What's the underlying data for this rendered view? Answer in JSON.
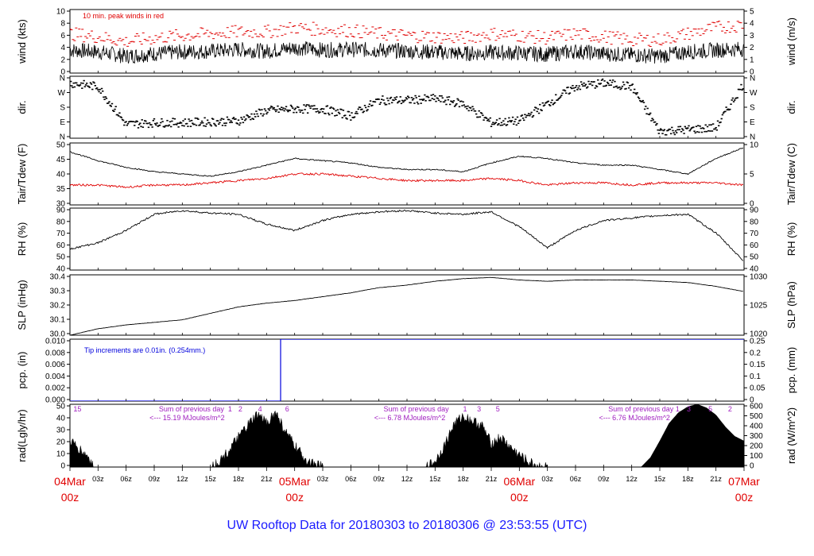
{
  "title": "UW Rooftop Data for 20180303  to  20180306 @ 23:53:55  (UTC)",
  "colors": {
    "black": "#000000",
    "red": "#e00000",
    "blue": "#0000dd",
    "purple": "#a020c0",
    "title": "#1a1aff"
  },
  "x_axis": {
    "hour_labels": [
      "03z",
      "06z",
      "09z",
      "12z",
      "15z",
      "18z",
      "21z"
    ],
    "dates": [
      {
        "top": "04Mar",
        "bottom": "00z",
        "hour": 0
      },
      {
        "top": "05Mar",
        "bottom": "00z",
        "hour": 24
      },
      {
        "top": "06Mar",
        "bottom": "00z",
        "hour": 48
      },
      {
        "top": "07Mar",
        "bottom": "00z",
        "hour": 72
      }
    ]
  },
  "chart_data": [
    {
      "name": "wind",
      "type": "line",
      "ylabel": "wind (kts)",
      "ylabel_right": "wind (m/s)",
      "ylim": [
        0,
        10.5
      ],
      "yticks": [
        "0",
        "2",
        "4",
        "6",
        "8",
        "10"
      ],
      "yticks_right": [
        "0",
        "1",
        "2",
        "3",
        "4",
        "5"
      ],
      "annotation": "10 min. peak winds in red",
      "x": [
        0,
        3,
        6,
        9,
        12,
        15,
        18,
        21,
        24,
        27,
        30,
        33,
        36,
        39,
        42,
        45,
        48,
        51,
        54,
        57,
        60,
        63,
        66,
        69,
        72
      ],
      "series": [
        {
          "values": [
            3.8,
            3.5,
            2.8,
            3.2,
            3.5,
            3.6,
            3.9,
            3.6,
            4.2,
            3.8,
            3.9,
            3.8,
            3.6,
            3.5,
            3.2,
            3.4,
            3.3,
            3.1,
            3.6,
            3.2,
            3.0,
            2.8,
            3.5,
            3.8,
            4.0
          ]
        },
        {
          "values": [
            6.5,
            6.0,
            5.2,
            5.8,
            6.2,
            6.5,
            6.8,
            6.8,
            7.5,
            7.2,
            7.0,
            6.5,
            6.2,
            6.0,
            5.8,
            6.5,
            6.2,
            5.8,
            6.5,
            6.0,
            5.5,
            5.5,
            6.5,
            7.5,
            8.0
          ]
        }
      ]
    },
    {
      "name": "dir",
      "type": "scatter",
      "ylabel": "dir.",
      "ylabel_right": "dir.",
      "ylim": [
        0,
        360
      ],
      "yticks": [
        "N",
        "E",
        "S",
        "W",
        "N"
      ],
      "yticks_right": [
        "N",
        "E",
        "S",
        "W",
        "N"
      ],
      "x": [
        0,
        3,
        6,
        9,
        12,
        15,
        18,
        21,
        24,
        27,
        30,
        33,
        36,
        39,
        42,
        45,
        48,
        51,
        54,
        57,
        60,
        63,
        66,
        69,
        72
      ],
      "values": [
        320,
        300,
        80,
        90,
        90,
        95,
        100,
        160,
        170,
        170,
        130,
        220,
        220,
        230,
        200,
        90,
        100,
        200,
        300,
        320,
        300,
        40,
        50,
        60,
        320
      ]
    },
    {
      "name": "temp",
      "type": "line",
      "ylabel": "Tair/Tdew (F)",
      "ylabel_right": "Tair/Tdew (C)",
      "ylim": [
        25,
        53
      ],
      "yticks": [
        "30",
        "35",
        "40",
        "45",
        "50"
      ],
      "yticks_right": [
        "0",
        "5",
        "10"
      ],
      "x": [
        0,
        3,
        6,
        9,
        12,
        15,
        18,
        21,
        24,
        27,
        30,
        33,
        36,
        39,
        42,
        45,
        48,
        51,
        54,
        57,
        60,
        63,
        66,
        69,
        72
      ],
      "series": [
        {
          "values": [
            49,
            45,
            42,
            40,
            39,
            38,
            40,
            43,
            46,
            45,
            44,
            42,
            41,
            41,
            40,
            44,
            47,
            46,
            44,
            43,
            43,
            41,
            39,
            46,
            51
          ]
        },
        {
          "values": [
            34,
            34,
            33,
            34,
            34,
            35,
            36,
            37,
            39,
            39,
            38,
            37,
            36,
            36,
            36,
            37,
            36,
            34,
            35,
            35,
            34,
            35,
            35,
            35,
            34
          ]
        }
      ]
    },
    {
      "name": "rh",
      "type": "line",
      "ylabel": "RH (%)",
      "ylabel_right": "RH (%)",
      "ylim": [
        40,
        90
      ],
      "yticks": [
        "40",
        "50",
        "60",
        "70",
        "80",
        "90"
      ],
      "yticks_right": [
        "40",
        "50",
        "60",
        "70",
        "80",
        "90"
      ],
      "x": [
        0,
        3,
        6,
        9,
        12,
        15,
        18,
        21,
        24,
        27,
        30,
        33,
        36,
        39,
        42,
        45,
        48,
        51,
        54,
        57,
        60,
        63,
        66,
        69,
        72
      ],
      "values": [
        57,
        62,
        72,
        85,
        88,
        86,
        85,
        77,
        72,
        80,
        85,
        87,
        88,
        86,
        85,
        87,
        75,
        58,
        72,
        80,
        82,
        84,
        85,
        70,
        47
      ]
    },
    {
      "name": "slp",
      "type": "line",
      "ylabel": "SLP (inHg)",
      "ylabel_right": "SLP (hPa)",
      "ylim": [
        30.0,
        30.47
      ],
      "yticks": [
        "30.0",
        "30.1",
        "30.2",
        "30.3",
        "30.4"
      ],
      "yticks_right": [
        "1020",
        "1025",
        "1030"
      ],
      "x": [
        0,
        3,
        6,
        9,
        12,
        15,
        18,
        21,
        24,
        27,
        30,
        33,
        36,
        39,
        42,
        45,
        48,
        51,
        54,
        57,
        60,
        63,
        66,
        69,
        72
      ],
      "values": [
        30.0,
        30.05,
        30.08,
        30.1,
        30.12,
        30.17,
        30.22,
        30.25,
        30.27,
        30.3,
        30.33,
        30.37,
        30.39,
        30.42,
        30.44,
        30.45,
        30.43,
        30.42,
        30.43,
        30.43,
        30.43,
        30.42,
        30.41,
        30.38,
        30.34
      ]
    },
    {
      "name": "pcp",
      "type": "line",
      "ylabel": "pcp. (in)",
      "ylabel_right": "pcp. (mm)",
      "ylim": [
        0,
        0.01
      ],
      "yticks": [
        "0.000",
        "0.002",
        "0.004",
        "0.006",
        "0.008",
        "0.010"
      ],
      "yticks_right": [
        "0",
        "0.05",
        "0.1",
        "0.15",
        "0.2",
        "0.25"
      ],
      "annotation": "Tip increments are 0.01in. (0.254mm.)",
      "x": [
        0,
        22.5,
        22.5,
        72
      ],
      "values": [
        0,
        0,
        0.01,
        0.01
      ]
    },
    {
      "name": "rad",
      "type": "area",
      "ylabel": "rad(Lgly/hr)",
      "ylabel_right": "rad (W/m^2)",
      "ylim": [
        0,
        53
      ],
      "yticks": [
        "0",
        "10",
        "20",
        "30",
        "40",
        "50"
      ],
      "yticks_right": [
        "0",
        "100",
        "200",
        "300",
        "400",
        "500",
        "600"
      ],
      "annotations": [
        {
          "text": "Sum of previous day",
          "x": 9.5,
          "row": 1
        },
        {
          "text": "<--- 15.19 MJoules/m^2",
          "x": 8.5,
          "row": 2
        },
        {
          "text": "Sum of previous day",
          "x": 33.5,
          "row": 1
        },
        {
          "text": "<--- 6.78 MJoules/m^2",
          "x": 32.5,
          "row": 2
        },
        {
          "text": "Sum of previous day",
          "x": 57.5,
          "row": 1
        },
        {
          "text": "<--- 6.76 MJoules/m^2",
          "x": 56.5,
          "row": 2
        }
      ],
      "hour_marks": [
        {
          "text": "15",
          "x": 0.8
        },
        {
          "text": "1",
          "x": 17.1
        },
        {
          "text": "2",
          "x": 18.2
        },
        {
          "text": "4",
          "x": 20.3
        },
        {
          "text": "6",
          "x": 23.2
        },
        {
          "text": "1",
          "x": 42.2
        },
        {
          "text": "3",
          "x": 43.7
        },
        {
          "text": "5",
          "x": 45.7
        },
        {
          "text": "1",
          "x": 64.9
        },
        {
          "text": "3",
          "x": 66.1
        },
        {
          "text": "5",
          "x": 68.4
        },
        {
          "text": "2",
          "x": 70.5
        }
      ],
      "x": [
        0,
        2,
        2.5,
        15,
        16,
        17,
        18,
        19,
        20,
        21,
        22,
        23,
        24,
        25,
        26,
        27,
        38,
        39,
        40,
        41,
        42,
        43,
        44,
        45,
        46,
        47,
        48,
        49,
        50,
        51,
        61,
        62,
        63,
        64,
        65,
        66,
        67,
        68,
        69,
        70,
        71,
        72
      ],
      "values": [
        22,
        8,
        0,
        0,
        5,
        14,
        25,
        35,
        44,
        38,
        46,
        30,
        18,
        8,
        2,
        0,
        0,
        5,
        18,
        36,
        43,
        39,
        35,
        20,
        25,
        17,
        10,
        4,
        1,
        0,
        0,
        8,
        22,
        37,
        46,
        51,
        53,
        50,
        44,
        34,
        26,
        22
      ]
    }
  ]
}
